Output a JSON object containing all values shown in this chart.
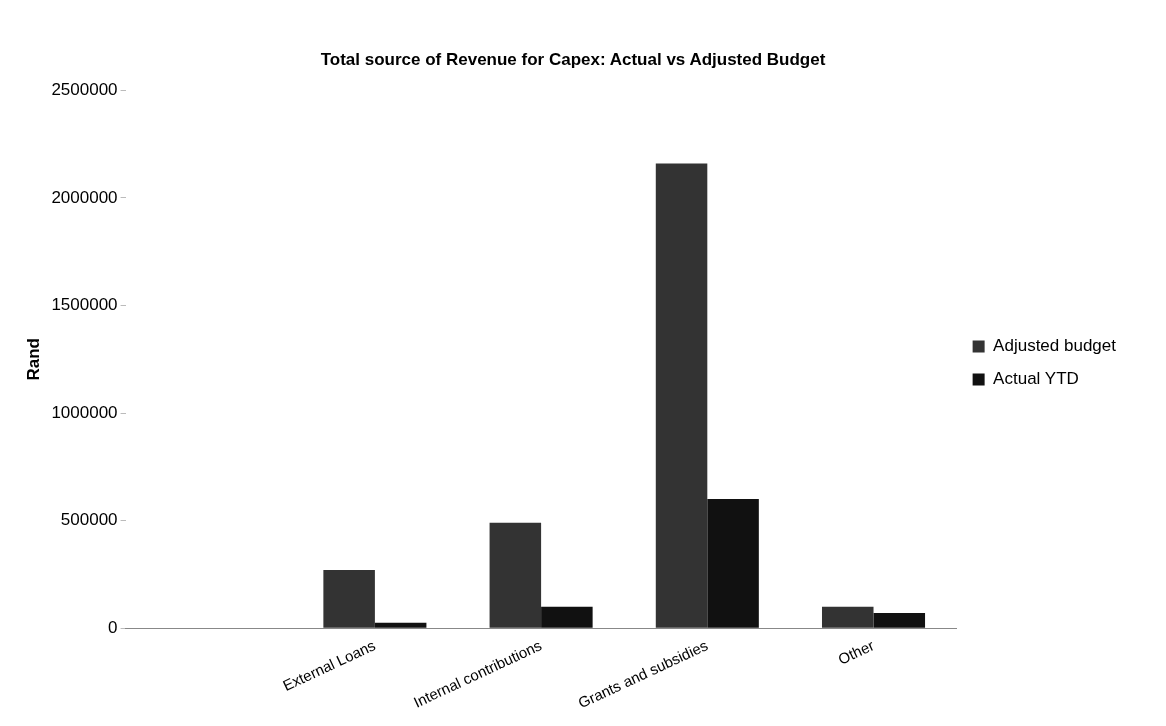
{
  "chart_data": {
    "type": "bar",
    "title": "Total source of Revenue for Capex: Actual vs Adjusted Budget",
    "ylabel": "Rand",
    "categories": [
      null,
      "External Loans",
      "Internal contributions",
      "Grants and subsidies",
      "Other"
    ],
    "series": [
      {
        "name": "Adjusted budget",
        "color": "#333333",
        "values": [
          0,
          270000,
          490000,
          2160000,
          100000
        ]
      },
      {
        "name": "Actual YTD",
        "color": "#111111",
        "values": [
          0,
          25000,
          100000,
          600000,
          70000
        ]
      }
    ],
    "ylim": [
      0,
      2500000
    ],
    "yticks": [
      0,
      500000,
      1000000,
      1500000,
      2000000,
      2500000
    ],
    "grid": false,
    "legend": "right"
  }
}
